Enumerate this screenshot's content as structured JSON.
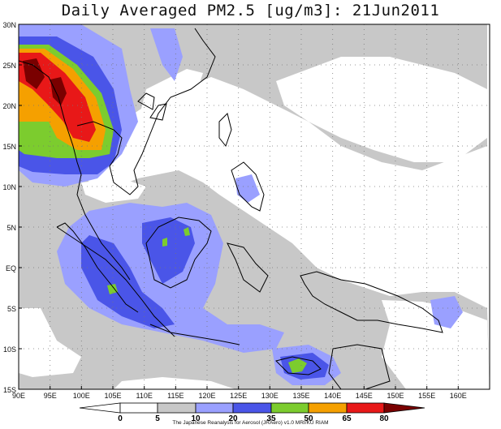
{
  "title": "Daily Averaged PM2.5 [ug/m3]: 21Jun2011",
  "axes": {
    "x_labels": [
      "90E",
      "95E",
      "100E",
      "105E",
      "110E",
      "115E",
      "120E",
      "125E",
      "130E",
      "135E",
      "140E",
      "145E",
      "150E",
      "155E",
      "160E"
    ],
    "y_labels": [
      "30N",
      "25N",
      "20N",
      "15N",
      "10N",
      "5N",
      "EQ",
      "5S",
      "10S",
      "15S"
    ]
  },
  "colorbar": {
    "levels": [
      "0",
      "5",
      "10",
      "20",
      "35",
      "50",
      "65",
      "80"
    ],
    "colors": [
      "#ffffff",
      "#ffffff",
      "#c8c8c8",
      "#9aa0ff",
      "#4a55e8",
      "#7ccc2e",
      "#f5a000",
      "#e81818",
      "#7a0000"
    ]
  },
  "credit": "The Japanese Reanalysis for Aerosol (JRAero) v1.0 MRI/KU RIAM"
}
